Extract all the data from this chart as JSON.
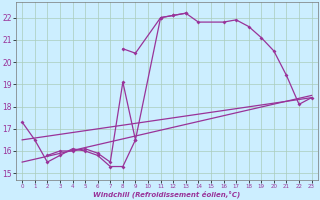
{
  "xlabel": "Windchill (Refroidissement éolien,°C)",
  "background_color": "#cceeff",
  "grid_color": "#aaccbb",
  "line_color": "#993399",
  "xlim": [
    -0.5,
    23.5
  ],
  "ylim": [
    14.7,
    22.7
  ],
  "yticks": [
    15,
    16,
    17,
    18,
    19,
    20,
    21,
    22
  ],
  "xticks": [
    0,
    1,
    2,
    3,
    4,
    5,
    6,
    7,
    8,
    9,
    10,
    11,
    12,
    13,
    14,
    15,
    16,
    17,
    18,
    19,
    20,
    21,
    22,
    23
  ],
  "curves": [
    {
      "x": [
        0,
        1,
        2,
        3,
        4,
        5,
        6,
        7,
        8,
        9
      ],
      "y": [
        17.3,
        16.5,
        15.5,
        15.8,
        16.1,
        16.0,
        15.8,
        15.3,
        15.3,
        16.5
      ],
      "marker": true
    },
    {
      "x": [
        2,
        3,
        4,
        5,
        6,
        7,
        8,
        9,
        11,
        12,
        13
      ],
      "y": [
        15.8,
        16.0,
        16.0,
        16.1,
        15.9,
        15.5,
        19.1,
        16.5,
        22.0,
        22.1,
        22.2
      ],
      "marker": true
    },
    {
      "x": [
        8,
        9,
        11,
        12,
        13,
        14,
        16,
        17,
        18,
        19,
        20,
        21,
        22,
        23
      ],
      "y": [
        20.6,
        20.4,
        22.0,
        22.1,
        22.2,
        21.8,
        21.8,
        21.9,
        21.6,
        21.1,
        20.5,
        19.4,
        18.1,
        18.4
      ],
      "marker": true
    },
    {
      "x": [
        0,
        23
      ],
      "y": [
        15.5,
        18.5
      ],
      "marker": false
    },
    {
      "x": [
        0,
        23
      ],
      "y": [
        16.5,
        18.4
      ],
      "marker": false
    }
  ]
}
